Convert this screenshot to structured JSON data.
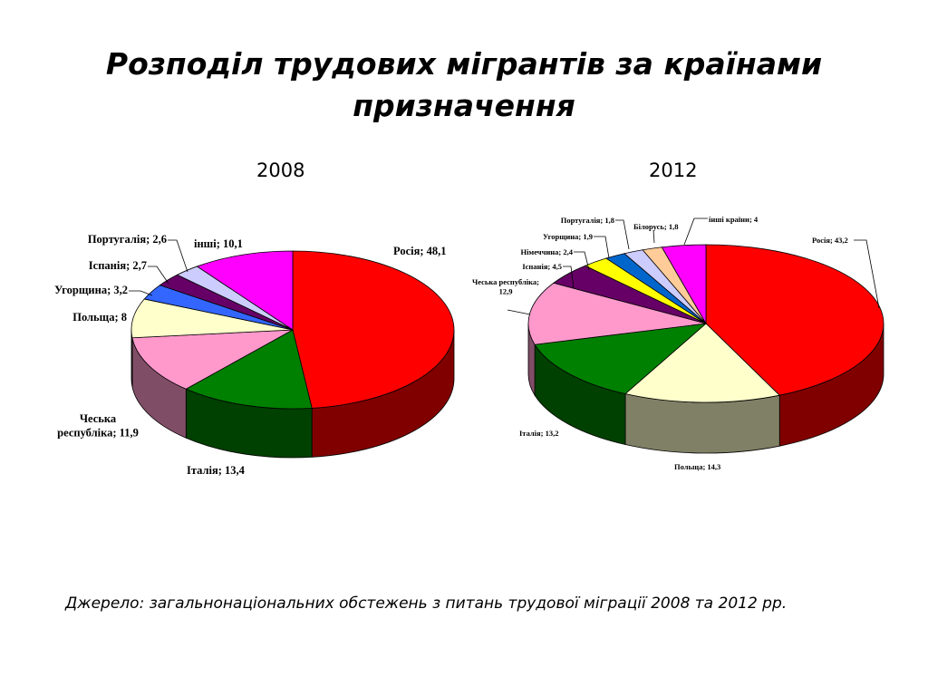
{
  "title_line1": "Розподіл трудових мігрантів за країнами",
  "title_line2": "призначення",
  "source": "Джерело: загальнонаціональних обстежень з питань трудової міграції 2008 та 2012 рр.",
  "chart_data": [
    {
      "type": "pie",
      "title": "2008",
      "slices": [
        {
          "label": "Росія; 48,1",
          "value": 48.1,
          "color": "#ff0000",
          "side": "#800000"
        },
        {
          "label": "Італія; 13,4",
          "value": 13.4,
          "color": "#008000",
          "side": "#004000"
        },
        {
          "label": "Чеська республіка; 11,9",
          "value": 11.9,
          "color": "#ff99cc",
          "side": "#804d66"
        },
        {
          "label": "Польща; 8",
          "value": 8.0,
          "color": "#ffffcc",
          "side": "#808066"
        },
        {
          "label": "Угорщина; 3,2",
          "value": 3.2,
          "color": "#3366ff",
          "side": "#1a3380"
        },
        {
          "label": "Іспанія; 2,7",
          "value": 2.7,
          "color": "#660066",
          "side": "#330033"
        },
        {
          "label": "Португалія; 2,6",
          "value": 2.6,
          "color": "#ccccff",
          "side": "#666680"
        },
        {
          "label": "інші; 10,1",
          "value": 10.1,
          "color": "#ff00ff",
          "side": "#800080"
        }
      ]
    },
    {
      "type": "pie",
      "title": "2012",
      "slices": [
        {
          "label": "Росія; 43,2",
          "value": 43.2,
          "color": "#ff0000",
          "side": "#800000"
        },
        {
          "label": "Польща; 14,3",
          "value": 14.3,
          "color": "#ffffcc",
          "side": "#808066"
        },
        {
          "label": "Італія; 13,2",
          "value": 13.2,
          "color": "#008000",
          "side": "#004000"
        },
        {
          "label": "Чеська республіка; 12,9",
          "value": 12.9,
          "color": "#ff99cc",
          "side": "#804d66"
        },
        {
          "label": "Іспанія; 4,5",
          "value": 4.5,
          "color": "#660066",
          "side": "#330033"
        },
        {
          "label": "Німеччина; 2,4",
          "value": 2.4,
          "color": "#ffff00",
          "side": "#808000"
        },
        {
          "label": "Угорщина; 1,9",
          "value": 1.9,
          "color": "#0066cc",
          "side": "#003366"
        },
        {
          "label": "Португалія; 1,8",
          "value": 1.8,
          "color": "#ccccff",
          "side": "#666680"
        },
        {
          "label": "Білорусь; 1,8",
          "value": 1.8,
          "color": "#ffcc99",
          "side": "#80664d"
        },
        {
          "label": "інші країни; 4",
          "value": 4.0,
          "color": "#ff00ff",
          "side": "#800080"
        }
      ]
    }
  ]
}
